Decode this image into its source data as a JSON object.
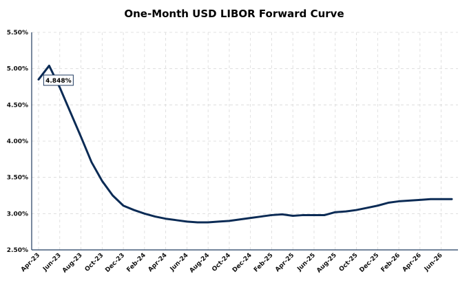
{
  "chart_data": {
    "type": "line",
    "title": "One-Month USD LIBOR Forward Curve",
    "xlabel": "",
    "ylabel": "",
    "ylim": [
      2.5,
      5.5
    ],
    "y_ticks": [
      "2.50%",
      "3.00%",
      "3.50%",
      "4.00%",
      "4.50%",
      "5.00%",
      "5.50%"
    ],
    "x_ticks": [
      "Apr-23",
      "Jun-23",
      "Aug-23",
      "Oct-23",
      "Dec-23",
      "Feb-24",
      "Apr-24",
      "Jun-24",
      "Aug-24",
      "Oct-24",
      "Dec-24",
      "Feb-25",
      "Apr-25",
      "Jun-25",
      "Aug-25",
      "Oct-25",
      "Dec-25",
      "Feb-26",
      "Apr-26",
      "Jun-26"
    ],
    "grid": true,
    "legend": "none",
    "series": [
      {
        "x": [
          "Apr-23",
          "May-23",
          "Jun-23",
          "Jul-23",
          "Aug-23",
          "Sep-23",
          "Oct-23",
          "Nov-23",
          "Dec-23",
          "Jan-24",
          "Feb-24",
          "Mar-24",
          "Apr-24",
          "May-24",
          "Jun-24",
          "Jul-24",
          "Aug-24",
          "Sep-24",
          "Oct-24",
          "Nov-24",
          "Dec-24",
          "Jan-25",
          "Feb-25",
          "Mar-25",
          "Apr-25",
          "May-25",
          "Jun-25",
          "Jul-25",
          "Aug-25",
          "Sep-25",
          "Oct-25",
          "Nov-25",
          "Dec-25",
          "Jan-26",
          "Feb-26",
          "Mar-26",
          "Apr-26",
          "May-26",
          "Jun-26",
          "Jul-26"
        ],
        "values": [
          4.85,
          5.04,
          4.74,
          4.4,
          4.06,
          3.71,
          3.45,
          3.25,
          3.11,
          3.05,
          3.0,
          2.96,
          2.93,
          2.91,
          2.89,
          2.88,
          2.88,
          2.89,
          2.9,
          2.92,
          2.94,
          2.96,
          2.98,
          2.99,
          2.97,
          2.98,
          2.98,
          2.98,
          3.02,
          3.03,
          3.05,
          3.08,
          3.11,
          3.15,
          3.17,
          3.18,
          3.19,
          3.2,
          3.2,
          3.2
        ],
        "color": "#0b2b55"
      }
    ],
    "annotations": [
      {
        "x": "May-23",
        "text": "4.848%"
      }
    ]
  }
}
